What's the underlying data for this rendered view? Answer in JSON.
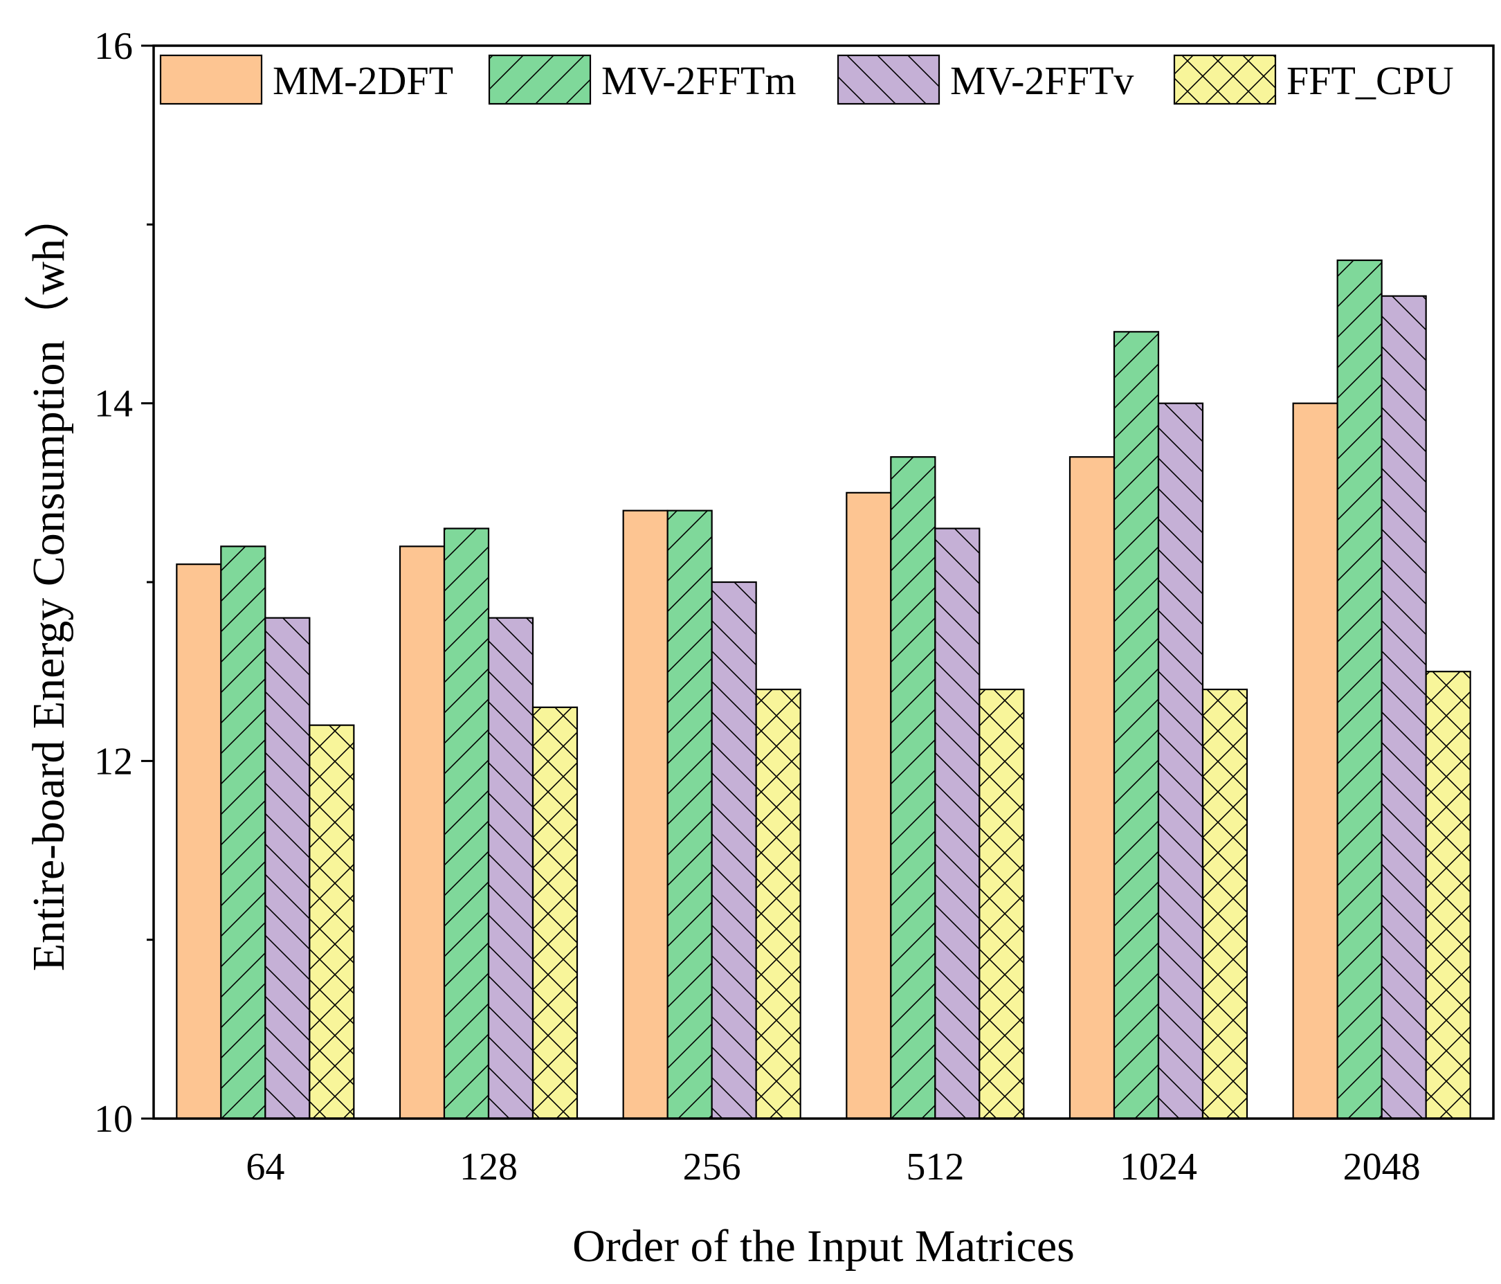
{
  "chart_data": {
    "type": "bar",
    "title": "",
    "xlabel": "Order of the Input Matrices",
    "ylabel": "Entire-board Energy Consumption（wh）",
    "ylim": [
      10,
      16
    ],
    "y_major_ticks": [
      10,
      12,
      14,
      16
    ],
    "y_minor_ticks": [
      11,
      13,
      15
    ],
    "grid": false,
    "legend_position": "top",
    "categories": [
      "64",
      "128",
      "256",
      "512",
      "1024",
      "2048"
    ],
    "series": [
      {
        "name": "MM-2DFT",
        "color": "#FDC592",
        "pattern": "none",
        "values": [
          13.1,
          13.2,
          13.4,
          13.5,
          13.7,
          14.0
        ]
      },
      {
        "name": "MV-2FFTm",
        "color": "#7FD89A",
        "pattern": "forward",
        "values": [
          13.2,
          13.3,
          13.4,
          13.7,
          14.4,
          14.8
        ]
      },
      {
        "name": "MV-2FFTv",
        "color": "#C5B0D6",
        "pattern": "backward",
        "values": [
          12.8,
          12.8,
          13.0,
          13.3,
          14.0,
          14.6
        ]
      },
      {
        "name": "FFT_CPU",
        "color": "#F8F59A",
        "pattern": "cross",
        "values": [
          12.2,
          12.3,
          12.4,
          12.4,
          12.4,
          12.5
        ]
      }
    ]
  }
}
